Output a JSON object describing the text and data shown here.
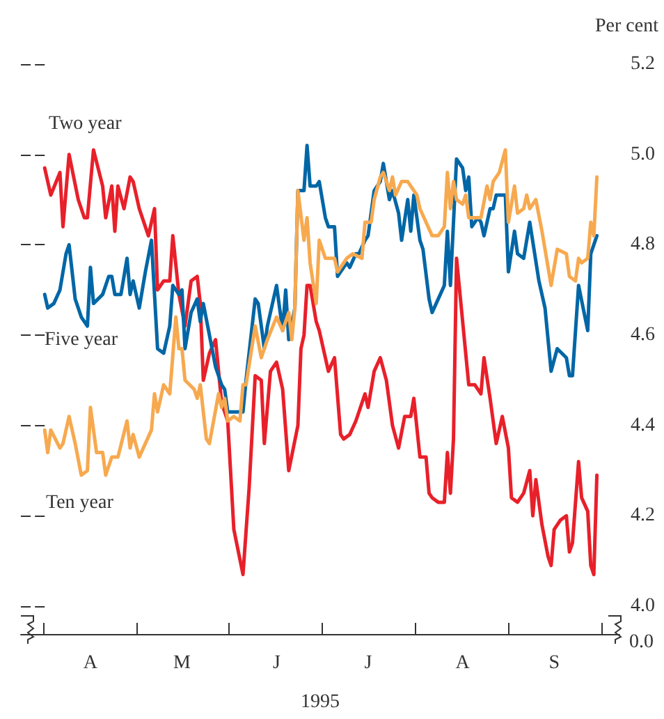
{
  "chart_data": {
    "type": "line",
    "xlabel": "1995",
    "ylabel": "Per cent",
    "categories": [
      null,
      null,
      null,
      null,
      null,
      null,
      null,
      null,
      null,
      null,
      null,
      null,
      null,
      null,
      null,
      "A",
      null,
      null,
      null,
      null,
      null,
      null,
      null,
      null,
      null,
      null,
      null,
      null,
      null,
      null,
      null,
      null,
      null,
      null,
      null,
      null,
      null,
      null,
      null,
      null,
      null,
      null,
      null,
      null,
      null,
      "M",
      null,
      null,
      null,
      null,
      null,
      null,
      null,
      null,
      null,
      null,
      null,
      null,
      null,
      null,
      null,
      null,
      null,
      null,
      null,
      null,
      null,
      null,
      null,
      null,
      null,
      null,
      null,
      null,
      null,
      null,
      "J",
      null,
      null,
      null,
      null,
      null,
      null,
      null,
      null,
      null,
      null,
      null,
      null,
      null,
      null,
      null,
      null,
      null,
      null,
      null,
      null,
      null,
      null,
      null,
      null,
      null,
      null,
      null,
      null,
      null,
      "J",
      null,
      null,
      null,
      null,
      null,
      null,
      null,
      null,
      null,
      null,
      null,
      null,
      null,
      null,
      null,
      null,
      null,
      null,
      null,
      null,
      null,
      null,
      null,
      null,
      null,
      null,
      null,
      null,
      null,
      null,
      "A",
      null,
      null,
      null,
      null,
      null,
      null,
      null,
      null,
      null,
      null,
      null,
      null,
      null,
      null,
      null,
      null,
      null,
      null,
      null,
      null,
      null,
      null,
      null,
      null,
      null,
      null,
      null,
      null,
      null,
      "S",
      null,
      null,
      null,
      null,
      null,
      null,
      null,
      null,
      null,
      null,
      null,
      null,
      null,
      null,
      null
    ],
    "ylim": [
      4.0,
      5.2
    ],
    "yticks": [
      {
        "value": 4.0,
        "label": "4.0"
      },
      {
        "value": 4.2,
        "label": "4.2"
      },
      {
        "value": 4.4,
        "label": "4.4"
      },
      {
        "value": 4.6,
        "label": "4.6"
      },
      {
        "value": 4.8,
        "label": "4.8"
      },
      {
        "value": 5.0,
        "label": "5.0"
      },
      {
        "value": 5.2,
        "label": "5.2"
      }
    ],
    "annotations": [
      "0.0"
    ],
    "series": [
      {
        "name": "Two year",
        "color": "#e8202a",
        "values": [
          4.97,
          null,
          4.91,
          null,
          null,
          4.96,
          4.84,
          null,
          5.0,
          null,
          null,
          4.9,
          null,
          4.86,
          4.86,
          null,
          5.01,
          null,
          null,
          4.93,
          4.86,
          null,
          4.93,
          4.83,
          4.93,
          null,
          4.88,
          null,
          4.95,
          4.94,
          null,
          4.88,
          null,
          null,
          4.82,
          null,
          4.88,
          4.7,
          null,
          4.72,
          null,
          4.72,
          4.82,
          null,
          4.69,
          null,
          4.62,
          null,
          4.72,
          null,
          4.73,
          4.67,
          4.5,
          null,
          4.56,
          null,
          4.59,
          null,
          4.45,
          null,
          4.41,
          null,
          4.17,
          null,
          null,
          4.07,
          null,
          4.26,
          null,
          4.51,
          null,
          4.5,
          4.36,
          null,
          4.52,
          null,
          4.54,
          null,
          4.48,
          null,
          4.3,
          null,
          null,
          4.4,
          4.57,
          4.6,
          4.71,
          4.71,
          null,
          4.63,
          4.61,
          null,
          null,
          4.52,
          null,
          4.55,
          null,
          4.38,
          4.37,
          null,
          4.38,
          null,
          4.41,
          null,
          4.45,
          4.47,
          4.44,
          null,
          4.52,
          null,
          4.55,
          null,
          4.5,
          null,
          4.4,
          null,
          4.35,
          null,
          4.42,
          null,
          4.42,
          4.46,
          null,
          4.33,
          null,
          4.33,
          4.25,
          4.24,
          null,
          4.23,
          null,
          4.23,
          4.34,
          4.25,
          4.37,
          4.77,
          null,
          4.63,
          null,
          4.49,
          null,
          4.49,
          null,
          4.47,
          4.55,
          null,
          4.46,
          null,
          4.36,
          null,
          4.42,
          null,
          4.35,
          4.24,
          null,
          4.23,
          null,
          4.25,
          null,
          4.3,
          4.2,
          4.28,
          null,
          4.18,
          null,
          4.11,
          4.09,
          4.17,
          null,
          4.19,
          null,
          4.2,
          4.12,
          4.14,
          null,
          4.32,
          4.24,
          null,
          4.21,
          4.09,
          4.07,
          4.29,
          null
        ]
      },
      {
        "name": "Five year",
        "color": "#0066a6",
        "values": [
          4.69,
          4.66,
          null,
          4.67,
          null,
          4.7,
          null,
          4.78,
          4.8,
          null,
          4.68,
          null,
          4.64,
          null,
          4.62,
          4.75,
          4.67,
          null,
          null,
          4.69,
          null,
          4.73,
          4.73,
          4.69,
          null,
          4.69,
          null,
          4.77,
          4.69,
          4.72,
          null,
          4.66,
          null,
          4.74,
          null,
          4.81,
          null,
          4.57,
          null,
          4.56,
          null,
          4.62,
          4.71,
          null,
          4.69,
          4.7,
          4.57,
          null,
          4.65,
          null,
          4.68,
          4.63,
          4.67,
          null,
          4.6,
          null,
          4.53,
          null,
          4.49,
          4.48,
          4.43,
          null,
          null,
          4.43,
          null,
          4.43,
          4.5,
          null,
          null,
          4.68,
          4.67,
          null,
          4.57,
          4.62,
          null,
          null,
          4.71,
          null,
          4.61,
          4.7,
          4.59,
          null,
          4.66,
          4.92,
          null,
          4.92,
          5.02,
          4.93,
          null,
          4.93,
          4.94,
          null,
          4.86,
          4.84,
          null,
          4.84,
          4.73,
          null,
          null,
          4.76,
          4.75,
          null,
          4.78,
          4.78,
          null,
          4.81,
          4.82,
          null,
          4.92,
          null,
          4.94,
          4.98,
          null,
          4.9,
          4.92,
          null,
          4.87,
          4.81,
          null,
          4.9,
          4.83,
          4.91,
          null,
          4.81,
          4.79,
          null,
          4.68,
          4.65,
          null,
          4.68,
          null,
          4.71,
          4.83,
          4.71,
          null,
          4.99,
          null,
          4.97,
          4.92,
          4.95,
          4.84,
          null,
          4.86,
          4.85,
          4.82,
          null,
          4.88,
          4.88,
          4.91,
          null,
          4.91,
          4.91,
          4.74,
          null,
          4.83,
          4.78,
          null,
          4.77,
          null,
          4.85,
          null,
          null,
          4.72,
          null,
          4.66,
          null,
          4.52,
          null,
          4.57,
          null,
          null,
          4.55,
          4.51,
          4.51,
          null,
          4.71,
          null,
          null,
          4.61,
          4.78,
          null,
          4.82,
          null
        ]
      },
      {
        "name": "Ten year",
        "color": "#f7a94f",
        "values": [
          4.39,
          4.34,
          4.39,
          null,
          null,
          4.35,
          4.36,
          null,
          4.42,
          null,
          4.36,
          null,
          4.29,
          null,
          4.3,
          4.44,
          null,
          4.34,
          null,
          4.34,
          4.29,
          null,
          4.33,
          null,
          4.33,
          null,
          null,
          4.41,
          4.35,
          4.38,
          null,
          4.33,
          null,
          4.36,
          null,
          4.39,
          4.47,
          4.43,
          null,
          4.49,
          null,
          4.47,
          null,
          4.64,
          4.57,
          4.57,
          4.5,
          null,
          null,
          4.48,
          4.46,
          4.49,
          null,
          4.37,
          4.36,
          null,
          null,
          4.47,
          4.44,
          4.46,
          4.41,
          null,
          4.42,
          null,
          4.41,
          4.49,
          4.49,
          null,
          null,
          4.62,
          null,
          4.55,
          null,
          4.59,
          null,
          null,
          4.64,
          null,
          4.61,
          null,
          4.65,
          4.59,
          4.66,
          4.92,
          null,
          4.81,
          4.86,
          4.76,
          null,
          4.67,
          4.81,
          null,
          4.77,
          null,
          null,
          4.77,
          4.74,
          null,
          null,
          4.77,
          null,
          4.78,
          null,
          null,
          4.77,
          4.85,
          null,
          4.85,
          4.9,
          null,
          4.95,
          4.96,
          null,
          4.92,
          4.95,
          4.91,
          null,
          4.94,
          null,
          4.94,
          4.93,
          null,
          4.91,
          4.88,
          null,
          4.85,
          null,
          4.82,
          null,
          4.82,
          null,
          4.84,
          4.96,
          4.88,
          4.94,
          4.9,
          null,
          4.89,
          4.91,
          4.86,
          null,
          4.86,
          null,
          4.86,
          null,
          4.93,
          4.9,
          4.94,
          null,
          4.96,
          null,
          5.01,
          4.85,
          null,
          4.93,
          4.87,
          null,
          4.88,
          4.91,
          4.88,
          null,
          4.9,
          null,
          4.83,
          null,
          null,
          4.71,
          null,
          4.79,
          null,
          null,
          4.78,
          4.73,
          null,
          4.72,
          4.77,
          4.76,
          null,
          4.77,
          4.85,
          4.82,
          4.95,
          null
        ]
      }
    ]
  }
}
